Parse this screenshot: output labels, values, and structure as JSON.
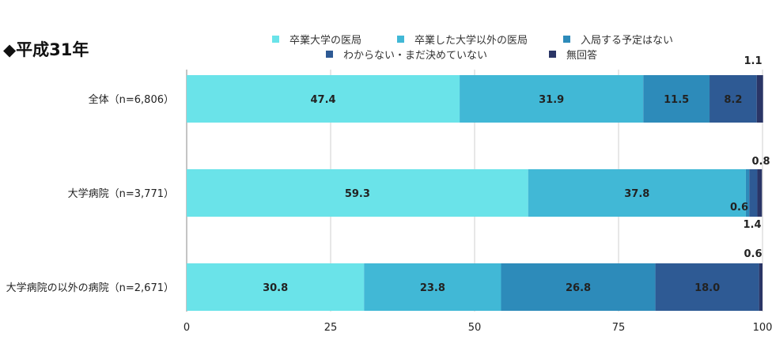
{
  "chart_data": {
    "type": "bar",
    "orientation": "horizontal",
    "stacked": true,
    "title": "◆平成31年",
    "categories": [
      "全体（n=6,806）",
      "大学病院（n=3,771）",
      "大学病院の以外の病院（n=2,671）"
    ],
    "series": [
      {
        "name": "卒業大学の医局",
        "values": [
          47.4,
          59.3,
          30.8
        ],
        "color": "#6ae3e9",
        "labels": [
          "47.4",
          "59.3",
          "30.8"
        ]
      },
      {
        "name": "卒業した大学以外の医局",
        "values": [
          31.9,
          37.8,
          23.8
        ],
        "color": "#41b8d6",
        "labels": [
          "31.9",
          "37.8",
          "23.8"
        ]
      },
      {
        "name": "入局する予定はない",
        "values": [
          11.5,
          0.6,
          26.8
        ],
        "color": "#2d8bba",
        "labels": [
          "11.5",
          "0.6",
          "26.8"
        ]
      },
      {
        "name": "わからない・まだ決めていない",
        "values": [
          8.2,
          1.4,
          18.0
        ],
        "color": "#2e5a94",
        "labels": [
          "8.2",
          "1.4",
          "18.0"
        ]
      },
      {
        "name": "無回答",
        "values": [
          1.1,
          0.8,
          0.6
        ],
        "color": "#2a3566",
        "labels": [
          "1.1",
          "0.8",
          "0.6"
        ]
      }
    ],
    "xlim": [
      0,
      100
    ],
    "xticks": [
      0,
      25,
      50,
      75,
      100
    ],
    "grid": true,
    "legend_position": "top"
  }
}
